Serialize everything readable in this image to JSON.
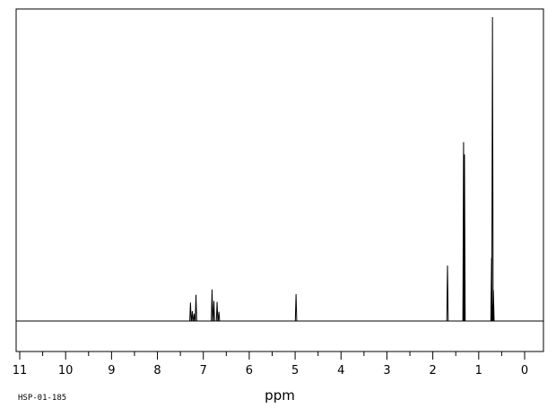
{
  "chart_data": {
    "type": "line",
    "title": "",
    "xlabel": "ppm",
    "ylabel": "",
    "xlim": [
      11.1,
      -0.4
    ],
    "x_reversed": true,
    "ylim": [
      0,
      100
    ],
    "grid": false,
    "legend": "none",
    "sample_code": "HSP-01-185",
    "x_ticks": [
      11,
      10,
      9,
      8,
      7,
      6,
      5,
      4,
      3,
      2,
      1,
      0
    ],
    "x_tick_labels": [
      "11",
      "10",
      "9",
      "8",
      "7",
      "6",
      "5",
      "4",
      "3",
      "2",
      "1",
      "0"
    ],
    "peaks": [
      {
        "ppm": 7.28,
        "height": 6.0
      },
      {
        "ppm": 7.24,
        "height": 3.2
      },
      {
        "ppm": 7.2,
        "height": 2.4
      },
      {
        "ppm": 7.16,
        "height": 8.5
      },
      {
        "ppm": 6.81,
        "height": 10.2
      },
      {
        "ppm": 6.77,
        "height": 6.5
      },
      {
        "ppm": 6.7,
        "height": 6.2
      },
      {
        "ppm": 6.66,
        "height": 3.0
      },
      {
        "ppm": 4.98,
        "height": 8.7
      },
      {
        "ppm": 1.68,
        "height": 18.0
      },
      {
        "ppm": 1.33,
        "height": 58.0
      },
      {
        "ppm": 1.31,
        "height": 54.0
      },
      {
        "ppm": 0.72,
        "height": 20.5
      },
      {
        "ppm": 0.7,
        "height": 98.5
      },
      {
        "ppm": 0.68,
        "height": 10.0
      }
    ]
  }
}
